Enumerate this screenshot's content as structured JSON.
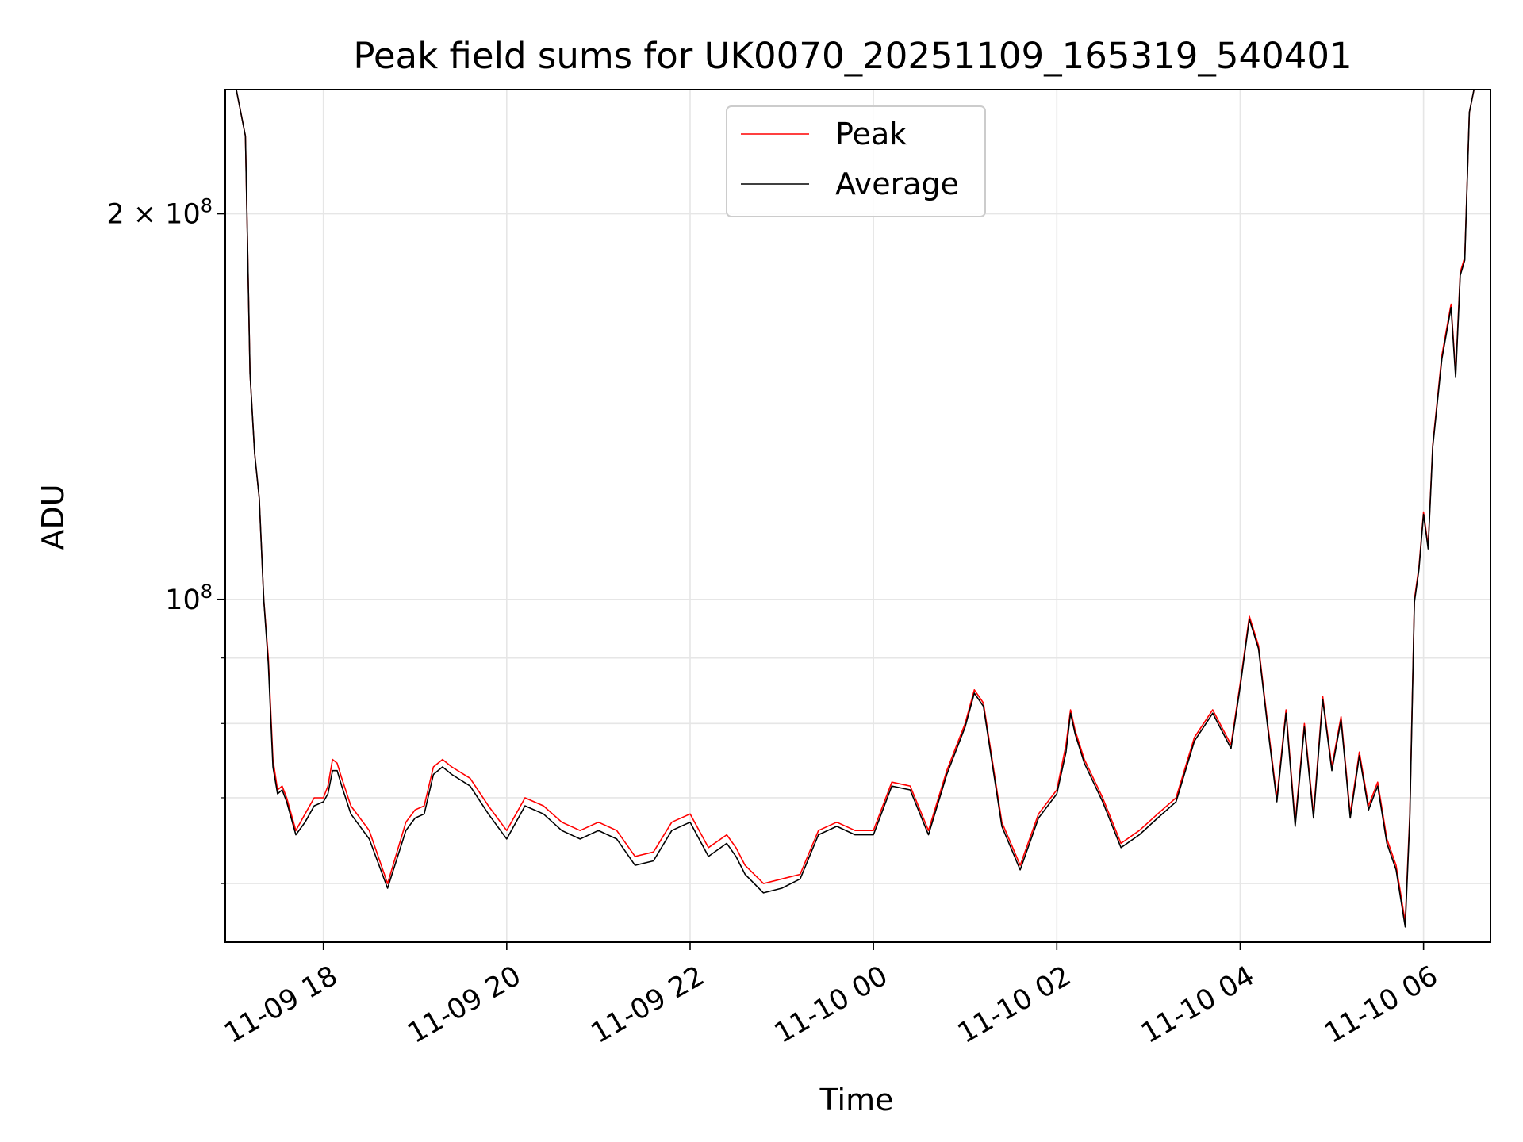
{
  "chart_data": {
    "type": "line",
    "title": "Peak field sums for UK0070_20251109_165319_540401",
    "xlabel": "Time",
    "ylabel": "ADU",
    "y_scale": "log",
    "grid": true,
    "legend_position": "top-center",
    "x_domain_hours": [
      -1.07,
      12.73
    ],
    "y_domain": [
      54000000,
      250000000
    ],
    "x_ticks": [
      {
        "hour": 0,
        "label": "11-09 18"
      },
      {
        "hour": 2,
        "label": "11-09 20"
      },
      {
        "hour": 4,
        "label": "11-09 22"
      },
      {
        "hour": 6,
        "label": "11-10 00"
      },
      {
        "hour": 8,
        "label": "11-10 02"
      },
      {
        "hour": 10,
        "label": "11-10 04"
      },
      {
        "hour": 12,
        "label": "11-10 06"
      }
    ],
    "y_ticks_major": [
      {
        "value": 100000000,
        "mantissa": "",
        "exponent": "8"
      },
      {
        "value": 200000000,
        "mantissa": "2 × ",
        "exponent": "8"
      }
    ],
    "y_ticks_minor": [
      60000000,
      70000000,
      80000000,
      90000000
    ],
    "series": [
      {
        "name": "Peak",
        "color": "#ff0000",
        "x_hours": [
          -0.95,
          -0.85,
          -0.8,
          -0.75,
          -0.7,
          -0.65,
          -0.6,
          -0.55,
          -0.5,
          -0.45,
          -0.4,
          -0.3,
          -0.2,
          -0.1,
          0.0,
          0.05,
          0.1,
          0.15,
          0.2,
          0.3,
          0.5,
          0.7,
          0.9,
          1.0,
          1.1,
          1.2,
          1.3,
          1.4,
          1.6,
          1.8,
          2.0,
          2.2,
          2.4,
          2.6,
          2.8,
          3.0,
          3.2,
          3.4,
          3.6,
          3.8,
          4.0,
          4.2,
          4.4,
          4.5,
          4.6,
          4.8,
          5.0,
          5.2,
          5.4,
          5.6,
          5.8,
          6.0,
          6.2,
          6.4,
          6.6,
          6.8,
          7.0,
          7.1,
          7.2,
          7.4,
          7.6,
          7.8,
          8.0,
          8.1,
          8.15,
          8.2,
          8.3,
          8.5,
          8.7,
          8.9,
          9.1,
          9.3,
          9.5,
          9.7,
          9.9,
          10.0,
          10.1,
          10.2,
          10.3,
          10.4,
          10.5,
          10.6,
          10.7,
          10.8,
          10.9,
          11.0,
          11.1,
          11.2,
          11.3,
          11.4,
          11.5,
          11.6,
          11.7,
          11.8,
          11.85,
          11.9,
          11.95,
          12.0,
          12.05,
          12.1,
          12.2,
          12.3,
          12.35,
          12.4,
          12.45,
          12.5,
          12.55,
          12.6,
          12.7
        ],
        "values": [
          250000000,
          230000000,
          150000000,
          130000000,
          120000000,
          100000000,
          90000000,
          75000000,
          71000000,
          71500000,
          70000000,
          66000000,
          68000000,
          70000000,
          70000000,
          71500000,
          75000000,
          74500000,
          72500000,
          69000000,
          66000000,
          60000000,
          67000000,
          68500000,
          69000000,
          74000000,
          75000000,
          74000000,
          72500000,
          69000000,
          66000000,
          70000000,
          69000000,
          67000000,
          66000000,
          67000000,
          66000000,
          63000000,
          63500000,
          67000000,
          68000000,
          64000000,
          65500000,
          64000000,
          62000000,
          60000000,
          60500000,
          61000000,
          66000000,
          67000000,
          66000000,
          66000000,
          72000000,
          71500000,
          66000000,
          73500000,
          80000000,
          85000000,
          83000000,
          67000000,
          62000000,
          68000000,
          71000000,
          77000000,
          82000000,
          79000000,
          75000000,
          70000000,
          64500000,
          66000000,
          68000000,
          70000000,
          78000000,
          82000000,
          77000000,
          86000000,
          97000000,
          92000000,
          80000000,
          70000000,
          82000000,
          67000000,
          80000000,
          68000000,
          84000000,
          74000000,
          81000000,
          68000000,
          76000000,
          69000000,
          72000000,
          65000000,
          62000000,
          56000000,
          68000000,
          100000000,
          106000000,
          117000000,
          110000000,
          132000000,
          155000000,
          170000000,
          150000000,
          180000000,
          185000000,
          240000000,
          250000000,
          250000000,
          250000000
        ]
      },
      {
        "name": "Average",
        "color": "#000000",
        "x_hours": [
          -0.95,
          -0.85,
          -0.8,
          -0.75,
          -0.7,
          -0.65,
          -0.6,
          -0.55,
          -0.5,
          -0.45,
          -0.4,
          -0.3,
          -0.2,
          -0.1,
          0.0,
          0.05,
          0.1,
          0.15,
          0.2,
          0.3,
          0.5,
          0.7,
          0.9,
          1.0,
          1.1,
          1.2,
          1.3,
          1.4,
          1.6,
          1.8,
          2.0,
          2.2,
          2.4,
          2.6,
          2.8,
          3.0,
          3.2,
          3.4,
          3.6,
          3.8,
          4.0,
          4.2,
          4.4,
          4.5,
          4.6,
          4.8,
          5.0,
          5.2,
          5.4,
          5.6,
          5.8,
          6.0,
          6.2,
          6.4,
          6.6,
          6.8,
          7.0,
          7.1,
          7.2,
          7.4,
          7.6,
          7.8,
          8.0,
          8.1,
          8.15,
          8.2,
          8.3,
          8.5,
          8.7,
          8.9,
          9.1,
          9.3,
          9.5,
          9.7,
          9.9,
          10.0,
          10.1,
          10.2,
          10.3,
          10.4,
          10.5,
          10.6,
          10.7,
          10.8,
          10.9,
          11.0,
          11.1,
          11.2,
          11.3,
          11.4,
          11.5,
          11.6,
          11.7,
          11.8,
          11.85,
          11.9,
          11.95,
          12.0,
          12.05,
          12.1,
          12.2,
          12.3,
          12.35,
          12.4,
          12.45,
          12.5,
          12.55,
          12.6,
          12.7
        ],
        "values": [
          250000000,
          230000000,
          150000000,
          130000000,
          120000000,
          100000000,
          89000000,
          74000000,
          70500000,
          71000000,
          69500000,
          65500000,
          67000000,
          69000000,
          69500000,
          70500000,
          73500000,
          73500000,
          71500000,
          68000000,
          65000000,
          59500000,
          66000000,
          67500000,
          68000000,
          73000000,
          74000000,
          73000000,
          71500000,
          68000000,
          65000000,
          69000000,
          68000000,
          66000000,
          65000000,
          66000000,
          65000000,
          62000000,
          62500000,
          66000000,
          67000000,
          63000000,
          64500000,
          63000000,
          61000000,
          59000000,
          59500000,
          60500000,
          65500000,
          66500000,
          65500000,
          65500000,
          71500000,
          71000000,
          65500000,
          73000000,
          79500000,
          84500000,
          82500000,
          66500000,
          61500000,
          67500000,
          70500000,
          76000000,
          81500000,
          78500000,
          74500000,
          69500000,
          64000000,
          65500000,
          67500000,
          69500000,
          77500000,
          81500000,
          76500000,
          85500000,
          96500000,
          91500000,
          79500000,
          69500000,
          81500000,
          66500000,
          79500000,
          67500000,
          83500000,
          73500000,
          80500000,
          67500000,
          75500000,
          68500000,
          71500000,
          64500000,
          61500000,
          55500000,
          67500000,
          99500000,
          105500000,
          116500000,
          109500000,
          131500000,
          154000000,
          169000000,
          149000000,
          179000000,
          184000000,
          240000000,
          250000000,
          250000000,
          250000000
        ]
      }
    ]
  }
}
